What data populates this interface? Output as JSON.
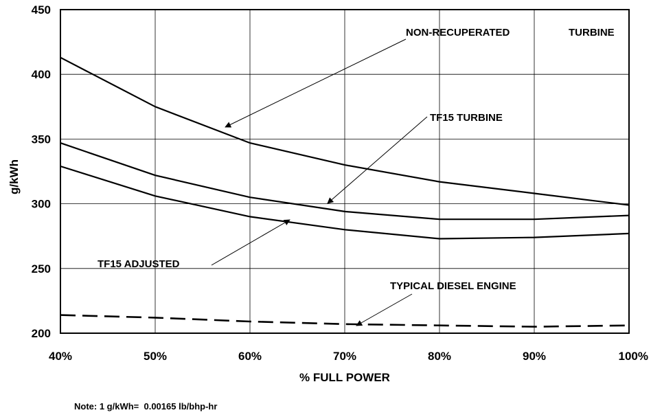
{
  "chart_data": {
    "type": "line",
    "xlabel": "% FULL POWER",
    "ylabel": "g/kWh",
    "x": [
      40,
      50,
      60,
      70,
      80,
      90,
      100
    ],
    "x_tick_labels": [
      "40%",
      "50%",
      "60%",
      "70%",
      "80%",
      "90%",
      "100%"
    ],
    "xlim": [
      40,
      100
    ],
    "ylim": [
      200,
      450
    ],
    "y_ticks": [
      200,
      250,
      300,
      350,
      400,
      450
    ],
    "grid": true,
    "series": [
      {
        "name": "NON-RECUPERATED TURBINE",
        "values": [
          413,
          375,
          347,
          330,
          317,
          308,
          299
        ],
        "style": "solid"
      },
      {
        "name": "TF15 TURBINE",
        "values": [
          347,
          322,
          305,
          294,
          288,
          288,
          291
        ],
        "style": "solid"
      },
      {
        "name": "TF15 ADJUSTED",
        "values": [
          329,
          306,
          290,
          280,
          273,
          274,
          277
        ],
        "style": "solid"
      },
      {
        "name": "TYPICAL DIESEL ENGINE",
        "values": [
          214,
          212,
          209,
          207,
          206,
          205,
          206
        ],
        "style": "dashed"
      }
    ],
    "annotations": [
      {
        "text": "NON-RECUPERATED",
        "series": 0
      },
      {
        "text": "TURBINE",
        "series": 0
      },
      {
        "text": "TF15 TURBINE",
        "series": 1
      },
      {
        "text": "TF15 ADJUSTED",
        "series": 2
      },
      {
        "text": "TYPICAL DIESEL ENGINE",
        "series": 3
      }
    ],
    "line_color": "#000000",
    "grid_color": "#000000"
  },
  "note": "Note: 1 g/kWh=  0.00165 lb/bhp-hr"
}
